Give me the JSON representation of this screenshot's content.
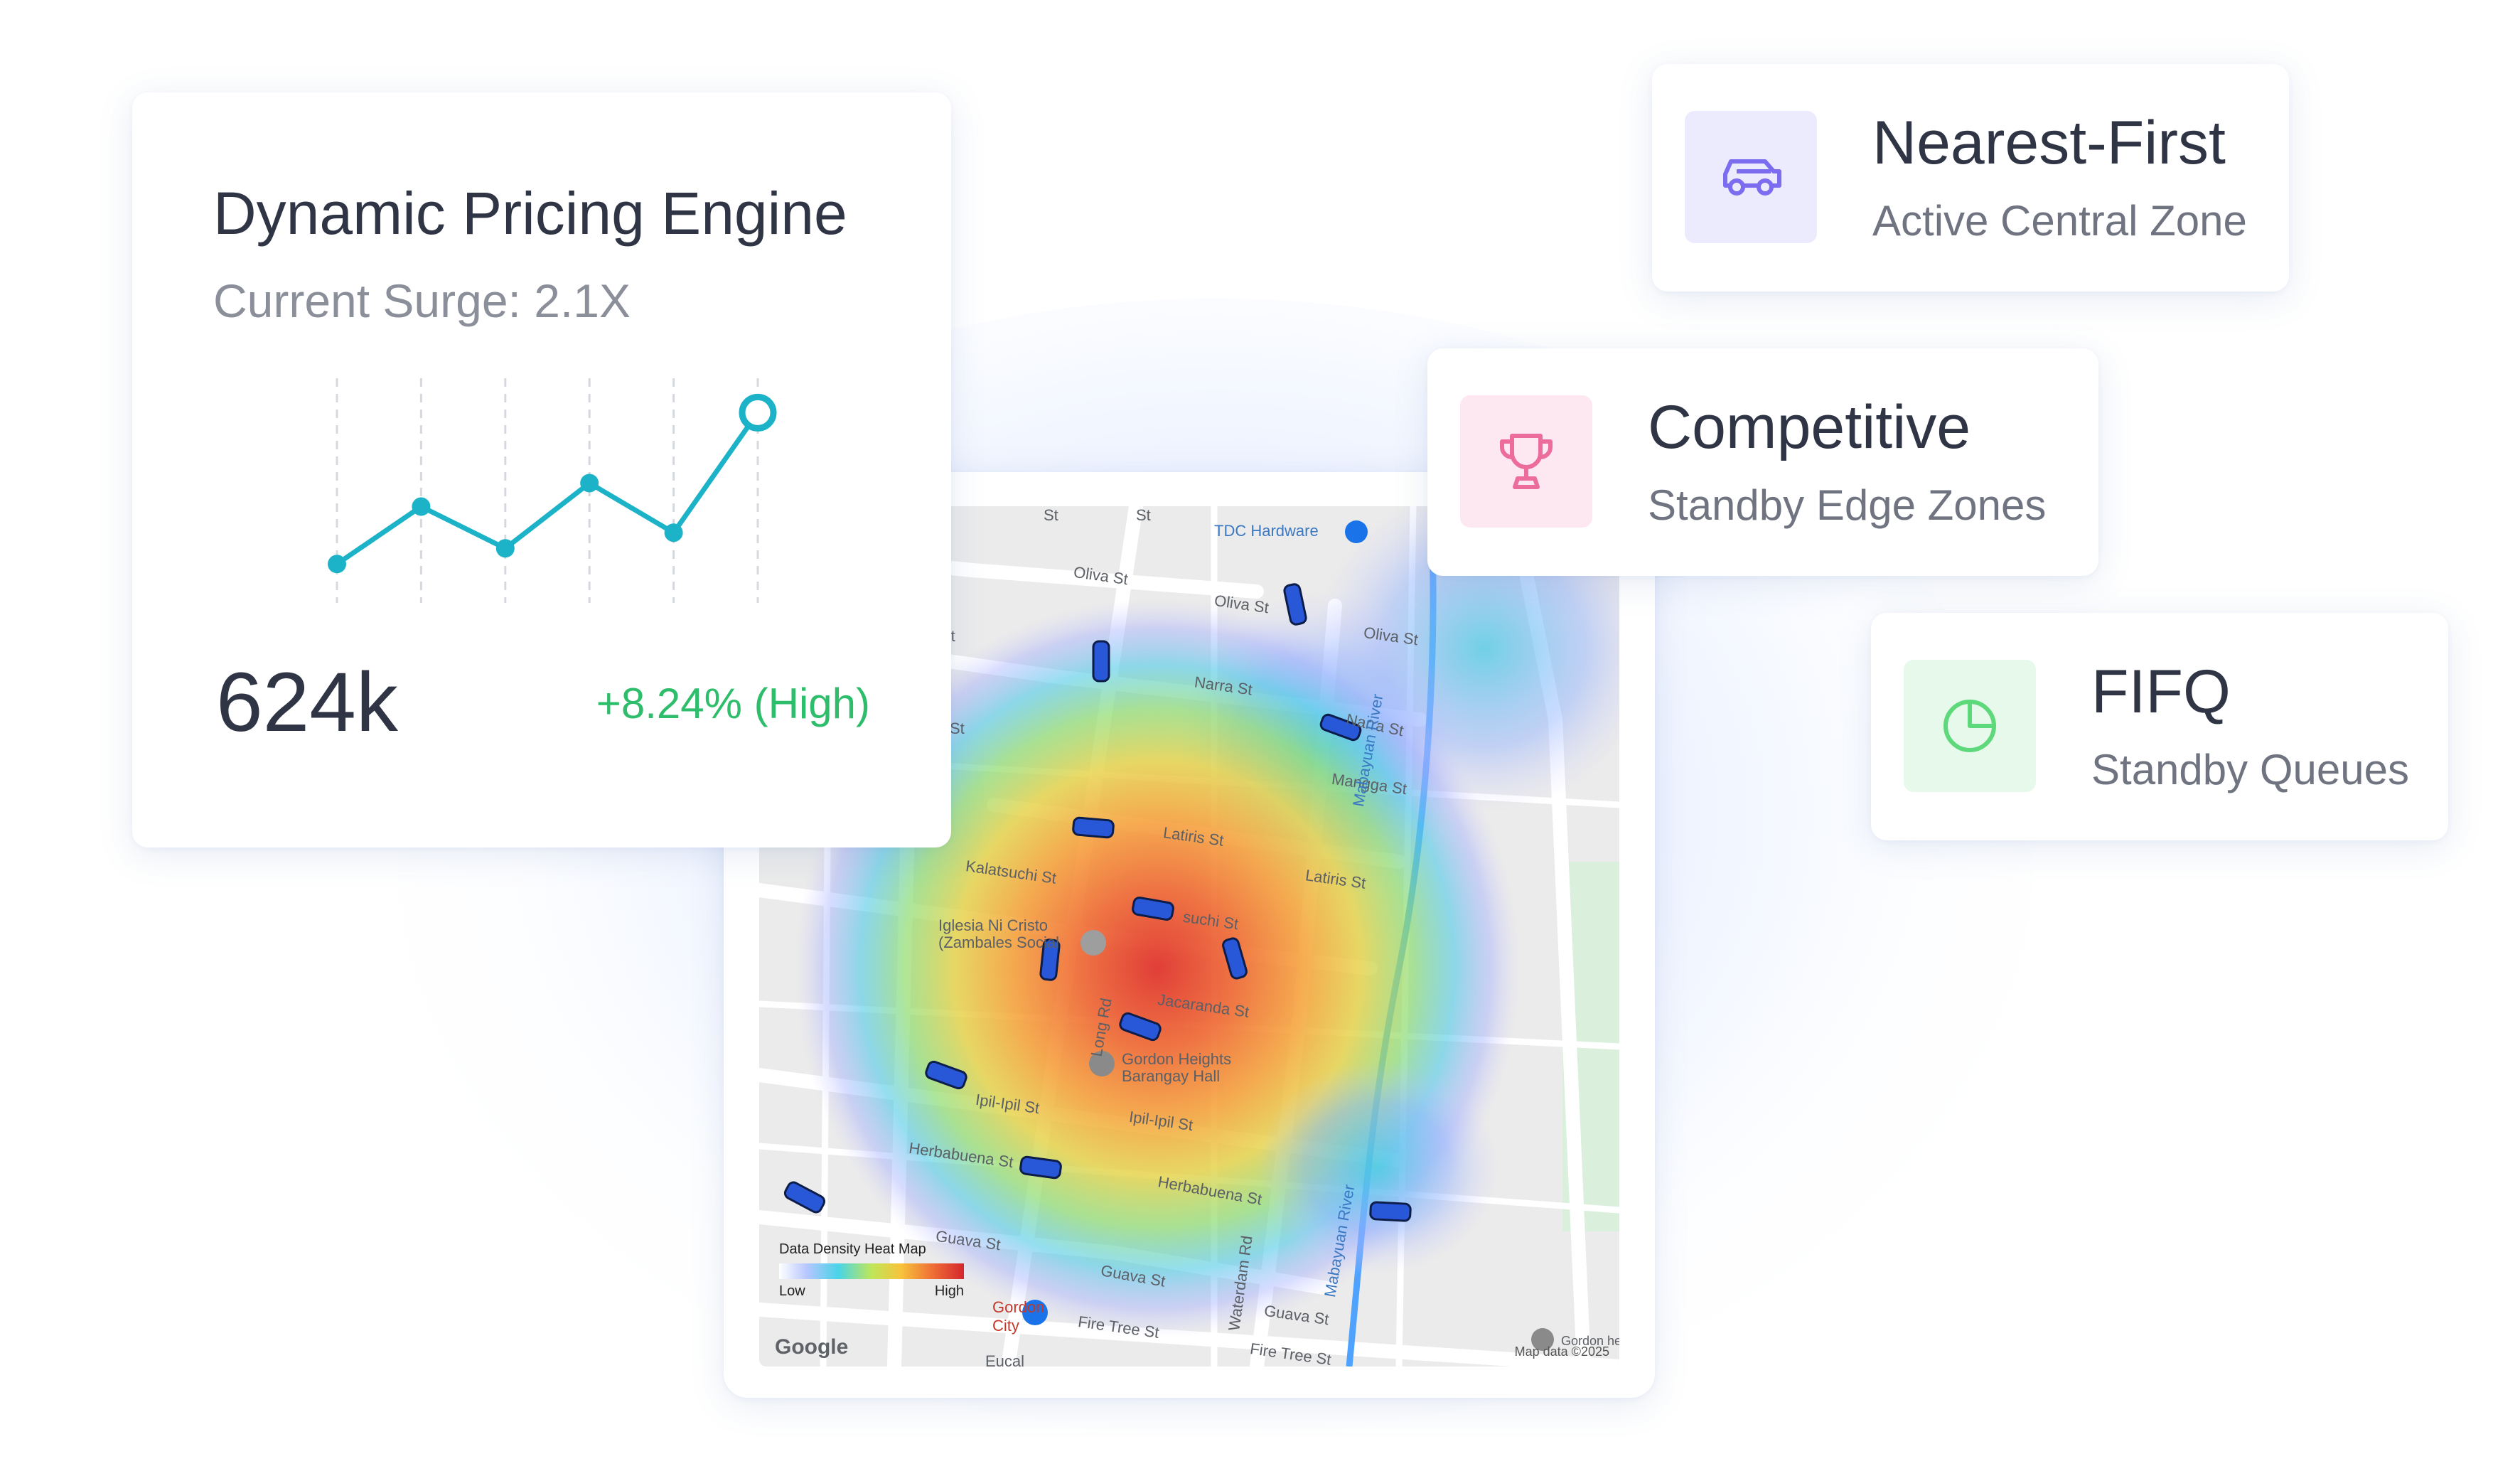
{
  "pricing_card": {
    "title": "Dynamic Pricing Engine",
    "subtitle": "Current Surge: 2.1X",
    "value": "624k",
    "change": "+8.24% (High)",
    "sparkline": [
      1.0,
      3.2,
      1.6,
      4.1,
      2.2,
      6.8
    ],
    "line_color": "#1cb3c8",
    "change_color": "#2ebd6b"
  },
  "map": {
    "poi": {
      "hardware": "TDC Hardware",
      "church": "Iglesia Ni Cristo (Zambales Social",
      "hall": "Gordon Heights Barangay Hall",
      "gordon": "Gordon City",
      "gordon_right": "Gordon he"
    },
    "streets": {
      "oliva_left": "Oliva St",
      "oliva_mid": "Oliva St",
      "oliva_right": "Oliva St",
      "narra": "Narra St",
      "narra_right": "Narra St",
      "mangga": "Mangga St",
      "latiris": "Latiris St",
      "latiris_right": "Latiris St",
      "kalatsuchi": "Kalatsuchi St",
      "kalatsuchi2": "suchi St",
      "jacaranda": "Jacaranda St",
      "long_rd": "Long Rd",
      "ipil_left": "Ipil-Ipil St",
      "ipil": "Ipil-Ipil St",
      "herbabuena_left": "Herbabuena St",
      "herbabuena": "Herbabuena St",
      "guava_left": "Guava St",
      "guava": "Guava St",
      "guava_right": "Guava St",
      "waterdam": "Waterdam Rd",
      "fire_tree": "Fire Tree St",
      "fire_tree_right": "Fire Tree St",
      "st1": "St",
      "st2": "St",
      "st3": "St",
      "st4": "St",
      "eucal": "Eucal",
      "river": "Mabayuan River",
      "river2": "Mabayuan River"
    },
    "legend": {
      "title": "Data Density Heat Map",
      "low": "Low",
      "high": "High"
    },
    "attribution": "Google",
    "map_data": "Map data ©2025"
  },
  "modes": [
    {
      "title": "Nearest-First",
      "subtitle": "Active Central Zone",
      "icon": "car-icon",
      "icon_color": "#7b6cf0",
      "bg": "#ecebfd"
    },
    {
      "title": "Competitive",
      "subtitle": "Standby Edge Zones",
      "icon": "trophy-icon",
      "icon_color": "#ec6d9b",
      "bg": "#fde8f1"
    },
    {
      "title": "FIFQ",
      "subtitle": "Standby Queues",
      "icon": "pie-chart-icon",
      "icon_color": "#5dd87a",
      "bg": "#e6f9ea"
    }
  ]
}
